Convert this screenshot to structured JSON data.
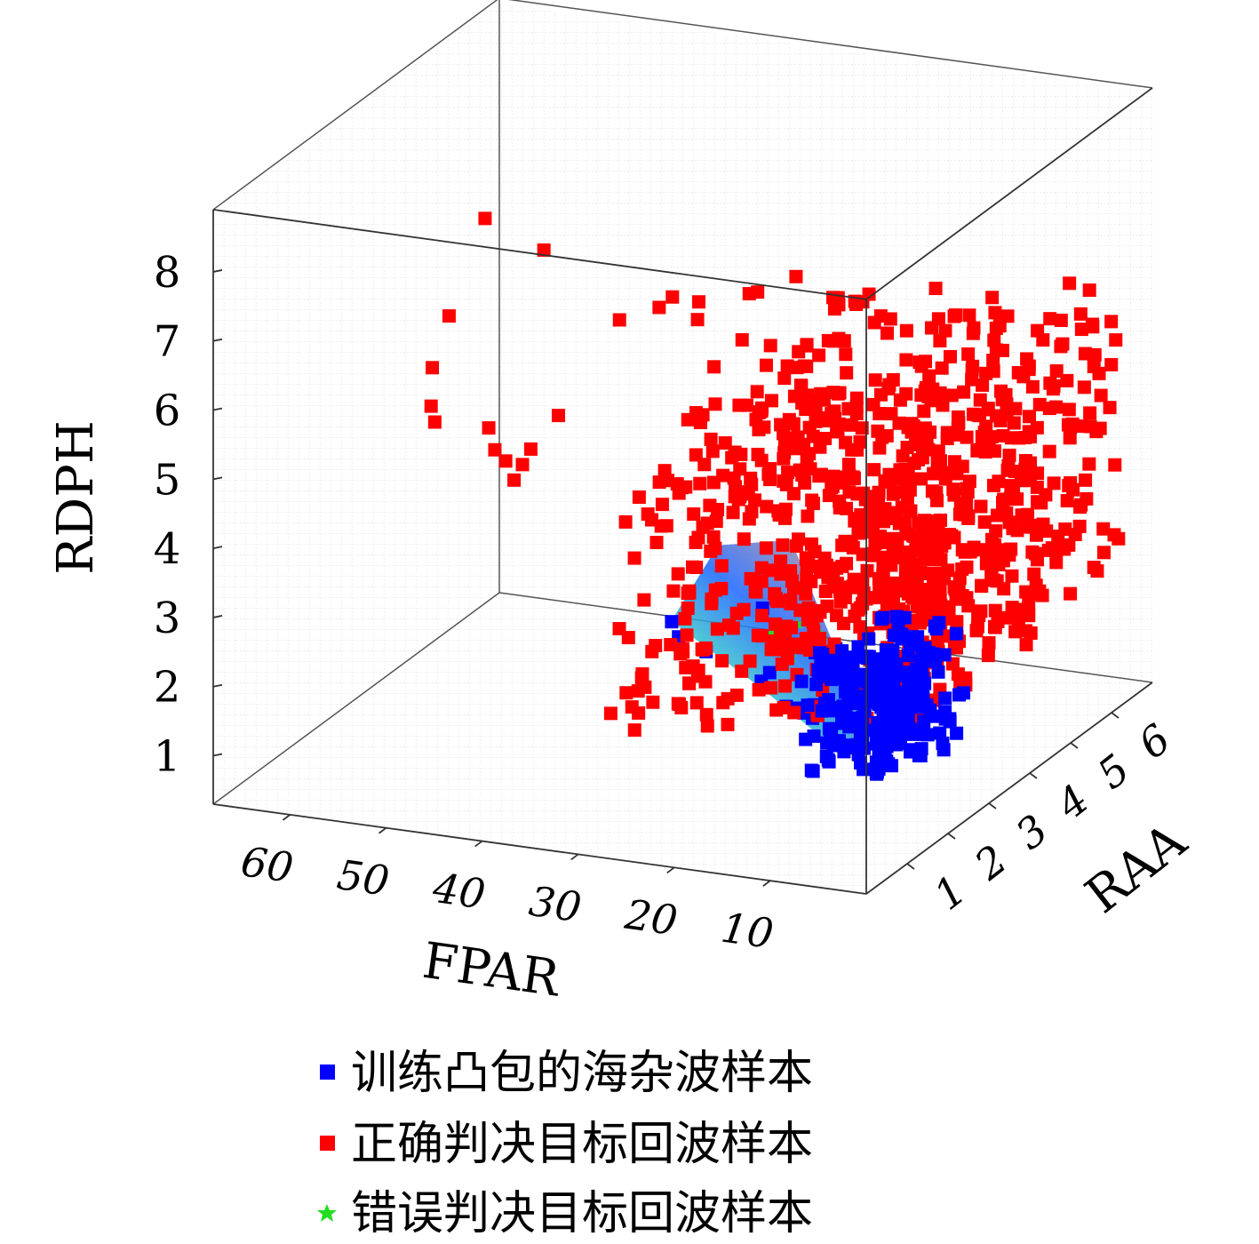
{
  "chart_data": {
    "type": "scatter",
    "subtype": "3d-scatter",
    "title": "",
    "axes": {
      "x": {
        "label": "FPAR",
        "ticks": [
          "60",
          "50",
          "40",
          "30",
          "20",
          "10"
        ]
      },
      "y": {
        "label": "RAA",
        "ticks": [
          "6",
          "5",
          "4",
          "3",
          "2",
          "1"
        ]
      },
      "z": {
        "label": "RDPH",
        "ticks": [
          "1",
          "2",
          "3",
          "4",
          "5",
          "6",
          "7",
          "8"
        ]
      }
    },
    "grid": true,
    "legend_position": "bottom",
    "colors": {
      "training": "#0000ff",
      "correct": "#ff0000",
      "wrong": "#22dd22",
      "hull_low": "#1a66ff",
      "hull_mid": "#7a7fc0",
      "hull_high": "#ff9a1a",
      "hull_edge": "#38d8c0"
    },
    "series": [
      {
        "name": "训练凸包的海杂波样本",
        "marker": "square",
        "color": "#0000ff",
        "points": [
          [
            10,
            1.5,
            2.8
          ],
          [
            8,
            1.3,
            2.3
          ],
          [
            6,
            1.0,
            2.6
          ],
          [
            12,
            1.8,
            2.1
          ],
          [
            15,
            2.2,
            1.6
          ],
          [
            18,
            2.7,
            1.4
          ],
          [
            22,
            3.2,
            1.2
          ],
          [
            28,
            4.0,
            1.1
          ],
          [
            38,
            5.0,
            0.9
          ],
          [
            43,
            5.5,
            0.8
          ],
          [
            45,
            5.8,
            0.85
          ],
          [
            30,
            4.5,
            1.9
          ],
          [
            25,
            3.5,
            1.5
          ],
          [
            20,
            3.0,
            1.3
          ],
          [
            16,
            2.5,
            2.4
          ],
          [
            14,
            2.0,
            1.9
          ],
          [
            11,
            1.7,
            1.7
          ],
          [
            9,
            1.2,
            2.0
          ],
          [
            13,
            2.3,
            2.6
          ],
          [
            24,
            3.8,
            1.8
          ],
          [
            7,
            0.9,
            3.1
          ],
          [
            5,
            0.8,
            2.4
          ]
        ]
      },
      {
        "name": "正确判决目标回波样本",
        "marker": "square",
        "color": "#ff0000",
        "points": [
          [
            44,
            1.0,
            8.8
          ],
          [
            40,
            1.5,
            8.2
          ],
          [
            30,
            1.0,
            7.6
          ],
          [
            28,
            1.5,
            7.6
          ],
          [
            26,
            2.0,
            7.5
          ],
          [
            24,
            1.5,
            7.5
          ],
          [
            22,
            2.5,
            7.5
          ],
          [
            18,
            2.5,
            7.8
          ],
          [
            14,
            3.0,
            7.3
          ],
          [
            12,
            2.0,
            7.2
          ],
          [
            25,
            3.0,
            7.2
          ],
          [
            16,
            3.5,
            7.0
          ],
          [
            20,
            4.0,
            6.8
          ],
          [
            33,
            3.0,
            7.0
          ],
          [
            22,
            3.5,
            6.2
          ],
          [
            30,
            4.0,
            6.0
          ],
          [
            15,
            4.5,
            6.2
          ],
          [
            10,
            4.0,
            5.6
          ],
          [
            8,
            3.5,
            5.8
          ],
          [
            52,
            2.0,
            6.8
          ],
          [
            58,
            3.0,
            5.5
          ],
          [
            56,
            2.5,
            5.2
          ],
          [
            50,
            2.5,
            5.0
          ],
          [
            47,
            3.5,
            4.8
          ],
          [
            52,
            4.0,
            4.0
          ],
          [
            55,
            4.5,
            3.5
          ],
          [
            62,
            4.0,
            4.2
          ],
          [
            60,
            5.0,
            3.4
          ],
          [
            61,
            5.5,
            3.0
          ],
          [
            58,
            5.0,
            3.0
          ],
          [
            45,
            5.5,
            3.0
          ],
          [
            40,
            5.5,
            2.5
          ],
          [
            36,
            6.0,
            2.0
          ],
          [
            25,
            5.5,
            2.5
          ],
          [
            20,
            5.0,
            2.3
          ],
          [
            15,
            4.5,
            2.7
          ],
          [
            12,
            4.0,
            3.5
          ],
          [
            6,
            3.0,
            3.8
          ],
          [
            3,
            2.5,
            3.6
          ],
          [
            2,
            1.5,
            3.2
          ],
          [
            1,
            1.0,
            3.0
          ],
          [
            4,
            2.0,
            4.3
          ],
          [
            9,
            3.0,
            4.4
          ],
          [
            11,
            2.5,
            4.8
          ],
          [
            13,
            3.5,
            4.1
          ],
          [
            18,
            4.0,
            4.0
          ],
          [
            22,
            4.5,
            3.6
          ],
          [
            27,
            5.0,
            3.3
          ],
          [
            31,
            5.5,
            3.1
          ],
          [
            35,
            5.0,
            3.2
          ],
          [
            38,
            4.5,
            3.5
          ],
          [
            42,
            5.0,
            3.3
          ],
          [
            32,
            4.0,
            4.0
          ],
          [
            28,
            3.5,
            4.6
          ],
          [
            26,
            4.5,
            5.2
          ],
          [
            24,
            3.0,
            5.5
          ],
          [
            19,
            3.5,
            5.3
          ],
          [
            17,
            2.5,
            5.9
          ],
          [
            21,
            2.0,
            6.1
          ],
          [
            14,
            2.0,
            6.3
          ],
          [
            9,
            2.0,
            6.0
          ],
          [
            7,
            1.5,
            5.0
          ],
          [
            5,
            1.0,
            4.3
          ],
          [
            8,
            4.5,
            3.2
          ],
          [
            16,
            5.0,
            2.9
          ],
          [
            19,
            5.5,
            2.4
          ],
          [
            23,
            6.0,
            2.0
          ]
        ]
      },
      {
        "name": "错误判决目标回波样本",
        "marker": "star",
        "color": "#22dd22",
        "points": [
          [
            14,
            2.2,
            2.8
          ],
          [
            12,
            2.0,
            2.7
          ],
          [
            16,
            2.5,
            2.5
          ],
          [
            18,
            2.8,
            2.4
          ],
          [
            20,
            3.0,
            2.5
          ],
          [
            22,
            3.3,
            2.3
          ],
          [
            10,
            1.6,
            2.9
          ],
          [
            8,
            1.4,
            3.0
          ],
          [
            19,
            2.6,
            2.2
          ],
          [
            21,
            2.9,
            2.0
          ],
          [
            15,
            2.4,
            2.6
          ],
          [
            13,
            1.9,
            2.3
          ],
          [
            24,
            3.5,
            2.1
          ],
          [
            26,
            3.8,
            1.9
          ]
        ]
      }
    ]
  }
}
